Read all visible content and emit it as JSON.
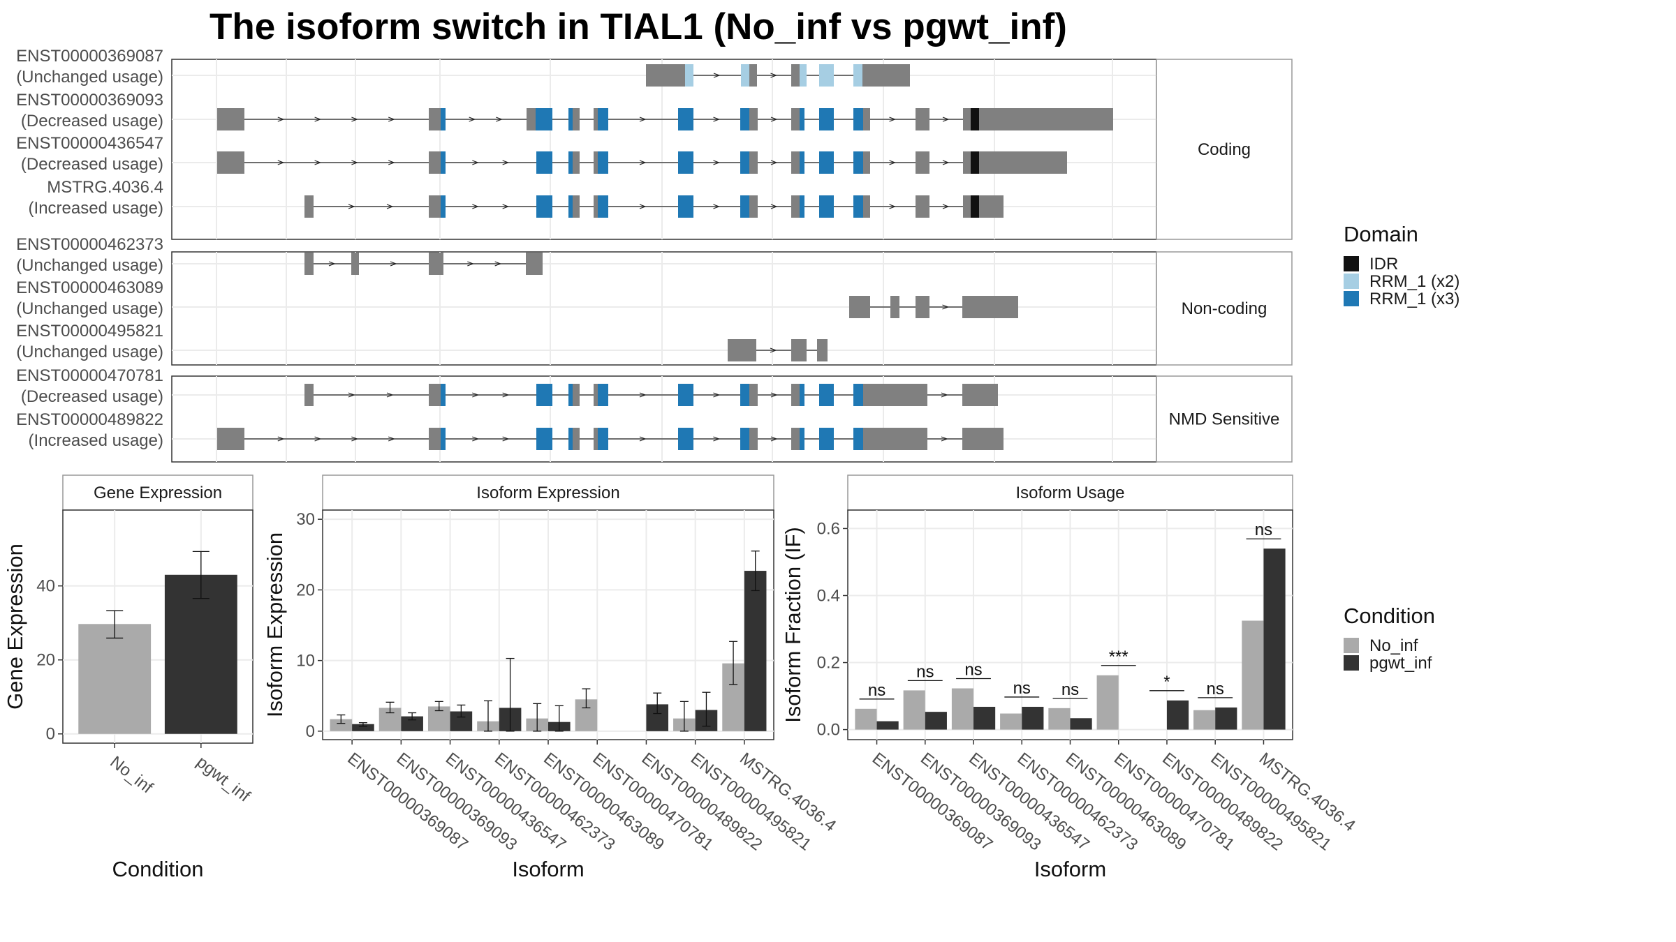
{
  "title": "The isoform switch in TIAL1 (No_inf vs pgwt_inf)",
  "colors": {
    "exon": "#808080",
    "IDR": "#111111",
    "RRM_1_x2": "#a6cee3",
    "RRM_1_x3": "#1f78b4",
    "No_inf": "#aaaaaa",
    "pgwt_inf": "#333333",
    "grid": "#ebebeb",
    "strip_border": "#999999"
  },
  "transcript_panels": [
    {
      "label": "Coding",
      "transcripts": [
        {
          "id": "ENST00000369087",
          "usage": "(Unchanged usage)"
        },
        {
          "id": "ENST00000369093",
          "usage": "(Decreased usage)"
        },
        {
          "id": "ENST00000436547",
          "usage": "(Decreased usage)"
        },
        {
          "id": "MSTRG.4036.4",
          "usage": "(Increased usage)"
        }
      ]
    },
    {
      "label": "Non-coding",
      "transcripts": [
        {
          "id": "ENST00000462373",
          "usage": "(Unchanged usage)"
        },
        {
          "id": "ENST00000463089",
          "usage": "(Unchanged usage)"
        },
        {
          "id": "ENST00000495821",
          "usage": "(Unchanged usage)"
        }
      ]
    },
    {
      "label": "NMD Sensitive",
      "transcripts": [
        {
          "id": "ENST00000470781",
          "usage": "(Decreased usage)"
        },
        {
          "id": "ENST00000489822",
          "usage": "(Increased usage)"
        }
      ]
    }
  ],
  "domain_legend": {
    "title": "Domain",
    "items": [
      {
        "name": "IDR",
        "color": "#111111"
      },
      {
        "name": "RRM_1 (x2)",
        "color": "#a6cee3"
      },
      {
        "name": "RRM_1 (x3)",
        "color": "#1f78b4"
      }
    ]
  },
  "condition_legend": {
    "title": "Condition",
    "items": [
      {
        "name": "No_inf",
        "color": "#aaaaaa"
      },
      {
        "name": "pgwt_inf",
        "color": "#333333"
      }
    ]
  },
  "chart_data": [
    {
      "type": "bar",
      "title": "Gene Expression",
      "xlabel": "Condition",
      "ylabel": "Gene Expression",
      "categories": [
        "No_inf",
        "pgwt_inf"
      ],
      "values": [
        29.7,
        43.0
      ],
      "error_low": [
        25.9,
        36.6
      ],
      "error_high": [
        33.3,
        49.3
      ],
      "yticks": [
        0,
        20,
        40
      ],
      "ylim": [
        -2.5,
        60.5
      ]
    },
    {
      "type": "bar",
      "title": "Isoform Expression",
      "xlabel": "Isoform",
      "ylabel": "Isoform Expression",
      "categories": [
        "ENST00000369087",
        "ENST00000369093",
        "ENST00000436547",
        "ENST00000462373",
        "ENST00000463089",
        "ENST00000470781",
        "ENST00000489822",
        "ENST00000495821",
        "MSTRG.4036.4"
      ],
      "yticks": [
        0,
        10,
        20,
        30
      ],
      "ylim": [
        -1.2,
        31.3
      ],
      "series": [
        {
          "name": "No_inf",
          "values": [
            1.7,
            3.3,
            3.5,
            1.4,
            1.8,
            4.5,
            0,
            1.8,
            9.6
          ],
          "error_low": [
            1.1,
            2.6,
            2.9,
            0,
            0,
            3.3,
            0,
            0,
            6.6
          ],
          "error_high": [
            2.3,
            4.1,
            4.2,
            4.3,
            3.9,
            6.0,
            0,
            4.2,
            12.7
          ]
        },
        {
          "name": "pgwt_inf",
          "values": [
            1.0,
            2.1,
            2.8,
            3.3,
            1.3,
            0,
            3.8,
            3.0,
            22.7
          ],
          "error_low": [
            0.7,
            1.6,
            2.0,
            0,
            0,
            0,
            2.5,
            0.7,
            19.9
          ],
          "error_high": [
            1.2,
            2.6,
            3.7,
            10.3,
            3.6,
            0,
            5.4,
            5.5,
            25.5
          ]
        }
      ]
    },
    {
      "type": "bar",
      "title": "Isoform Usage",
      "xlabel": "Isoform",
      "ylabel": "Isoform Fraction (IF)",
      "categories": [
        "ENST00000369087",
        "ENST00000369093",
        "ENST00000436547",
        "ENST00000462373",
        "ENST00000463089",
        "ENST00000470781",
        "ENST00000489822",
        "ENST00000495821",
        "MSTRG.4036.4"
      ],
      "yticks": [
        "0.0",
        "0.2",
        "0.4",
        "0.6"
      ],
      "ylim": [
        -0.03,
        0.655
      ],
      "significance": [
        "ns",
        "ns",
        "ns",
        "ns",
        "ns",
        "***",
        "*",
        "ns",
        "ns"
      ],
      "series": [
        {
          "name": "No_inf",
          "values": [
            0.062,
            0.117,
            0.123,
            0.048,
            0.064,
            0.162,
            0,
            0.058,
            0.325
          ]
        },
        {
          "name": "pgwt_inf",
          "values": [
            0.025,
            0.053,
            0.068,
            0.068,
            0.034,
            0,
            0.087,
            0.066,
            0.54
          ]
        }
      ]
    }
  ]
}
